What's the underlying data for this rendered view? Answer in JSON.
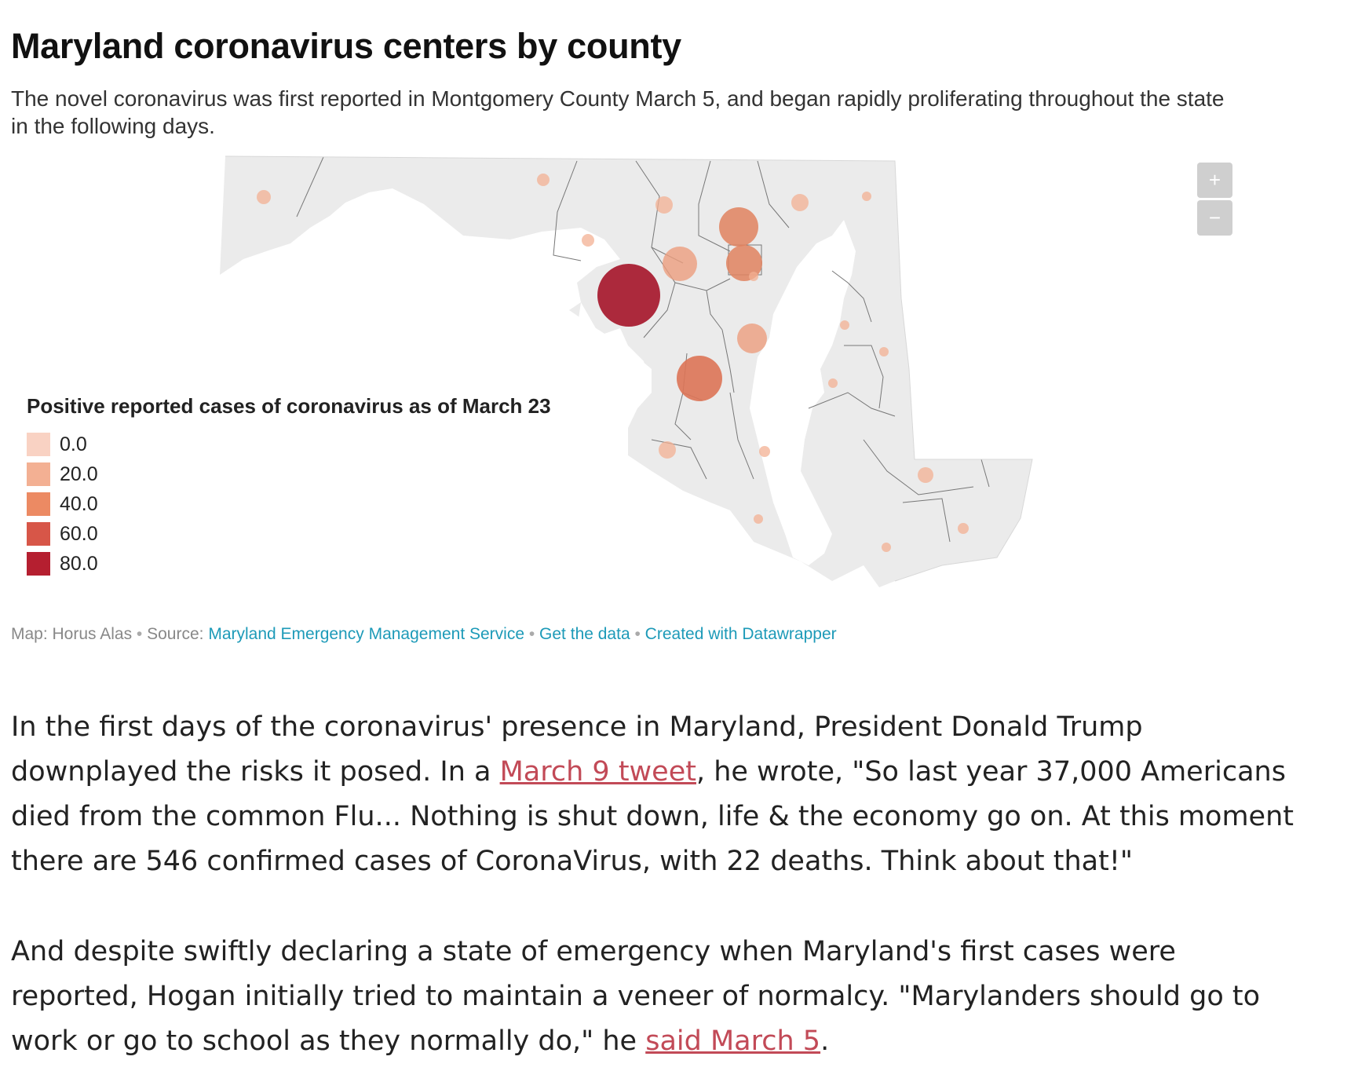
{
  "map": {
    "title": "Maryland coronavirus centers by county",
    "subtitle": "The novel coronavirus was first reported in Montgomery County March 5, and began rapidly proliferating throughout the state in the following days.",
    "zoom_in_label": "+",
    "zoom_out_label": "−",
    "legend": {
      "title": "Positive reported cases of coronavirus as of March 23",
      "items": [
        {
          "label": "0.0",
          "color": "#f9d2c3"
        },
        {
          "label": "20.0",
          "color": "#f3b093"
        },
        {
          "label": "40.0",
          "color": "#ec8a63"
        },
        {
          "label": "60.0",
          "color": "#d75648"
        },
        {
          "label": "80.0",
          "color": "#b51f30"
        }
      ]
    },
    "colors": {
      "land": "#ebebeb",
      "border": "#777777"
    }
  },
  "credits": {
    "prefix": "Map: Horus Alas",
    "source_label": "Source:",
    "source_link": "Maryland Emergency Management Service",
    "get_data": "Get the data",
    "created_with": "Created with Datawrapper"
  },
  "article": {
    "p1_before": "In the first days of the coronavirus' presence in Maryland, President Donald Trump downplayed the risks it posed. In a ",
    "p1_link": "March 9 tweet",
    "p1_after": ", he wrote, \"So last year 37,000 Americans died from the common Flu... Nothing is shut down, life & the economy go on. At this moment there are 546 confirmed cases of CoronaVirus, with 22 deaths. Think about that!\"",
    "p2_before": "And despite swiftly declaring a state of emergency when Maryland's first cases were reported, Hogan initially tried to maintain a veneer of normalcy. \"Marylanders should go to work or go to school as they normally do,\" he ",
    "p2_link": "said March 5",
    "p2_after": "."
  }
}
